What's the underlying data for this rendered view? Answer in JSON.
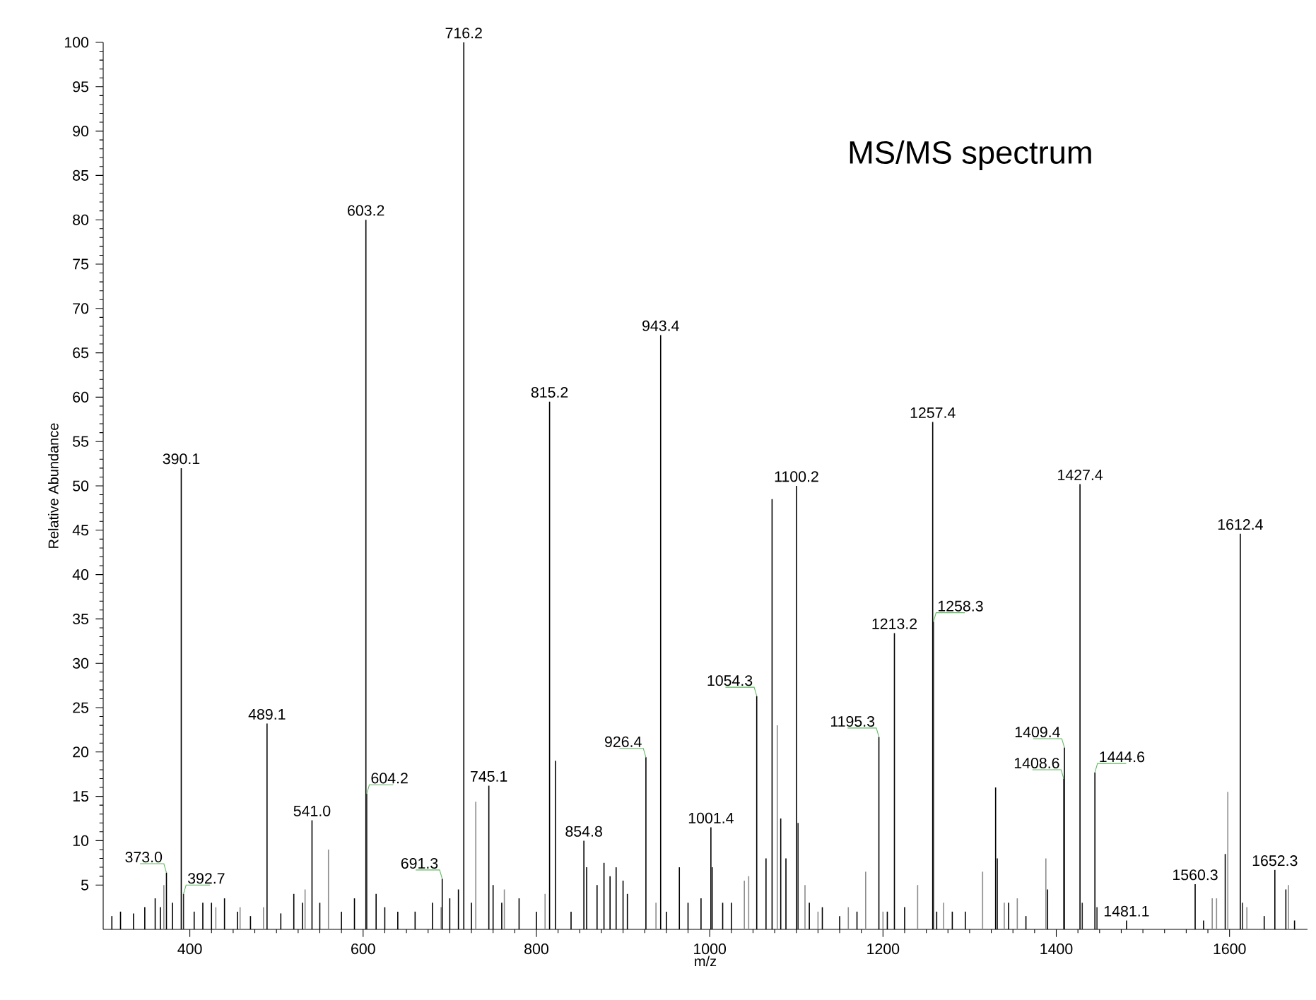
{
  "chart_data": {
    "type": "bar",
    "title": "MS/MS spectrum",
    "xlabel": "m/z",
    "ylabel": "Relative Abundance",
    "xlim": [
      300,
      1690
    ],
    "ylim": [
      0,
      100
    ],
    "xticks": [
      400,
      600,
      800,
      1000,
      1200,
      1400,
      1600
    ],
    "yticks": [
      5,
      10,
      15,
      20,
      25,
      30,
      35,
      40,
      45,
      50,
      55,
      60,
      65,
      70,
      75,
      80,
      85,
      90,
      95,
      100
    ],
    "series": [
      {
        "color": "#8c8c8c",
        "x": [
          370,
          430,
          458,
          485,
          533,
          560,
          690,
          730,
          763,
          810,
          938,
          1040,
          1045,
          1078,
          1110,
          1125,
          1160,
          1180,
          1200,
          1240,
          1270,
          1315,
          1340,
          1355,
          1388,
          1580,
          1585,
          1598,
          1620,
          1668
        ],
        "values": [
          5,
          2.5,
          2.5,
          2.5,
          4.5,
          9,
          2.5,
          14.4,
          4.5,
          4,
          3,
          5.5,
          6,
          23,
          5,
          2,
          2.5,
          6.5,
          2,
          5,
          3,
          6.5,
          3,
          3.5,
          8,
          3.5,
          3.5,
          15.5,
          2.5,
          5
        ]
      },
      {
        "color": "#000000",
        "x": [
          310,
          320,
          335,
          348,
          360,
          366,
          373.0,
          380,
          390.1,
          405,
          415,
          425,
          440,
          455,
          470,
          489.1,
          505,
          520,
          530,
          541.0,
          550,
          575,
          590,
          603.2,
          615,
          625,
          640,
          660,
          680,
          691.3,
          700,
          710,
          716.2,
          725,
          745.1,
          750,
          760,
          780,
          800,
          815.2,
          822,
          840,
          854.8,
          858,
          870,
          878,
          885,
          892,
          900,
          905,
          926.4,
          943.4,
          950,
          965,
          975,
          990,
          1001.4,
          1015,
          1025,
          1054.3,
          1065,
          1072,
          1082,
          1088,
          1100.2,
          1115,
          1130,
          1150,
          1170,
          1195.3,
          1205,
          1213.2,
          1225,
          1257.4,
          1262,
          1280,
          1295,
          1330,
          1345,
          1365,
          1390,
          1409.4,
          1427.4,
          1444.6,
          1481.1,
          1560.3,
          1570,
          1595,
          1612.4,
          1640,
          1652.3,
          1665,
          1675
        ],
        "values": [
          1.5,
          2,
          1.8,
          2.5,
          3.5,
          2.5,
          6.4,
          3,
          52,
          2,
          3,
          3,
          3.5,
          2,
          1.5,
          23.2,
          1.8,
          4,
          3,
          12.3,
          3,
          2,
          3.5,
          80,
          4,
          2.5,
          2,
          2,
          3,
          5.7,
          3.5,
          4.5,
          100,
          3,
          16.2,
          5,
          3,
          3.5,
          2,
          59.5,
          19,
          2,
          10,
          7,
          5,
          7.5,
          6,
          7,
          5.5,
          4,
          19.4,
          67,
          2,
          7,
          3,
          3.5,
          11.5,
          3,
          3,
          26.3,
          8,
          48.5,
          12.5,
          8,
          50,
          3,
          2.5,
          1.5,
          2,
          21.7,
          2,
          33.4,
          2.5,
          57.2,
          2,
          2,
          2,
          16,
          3,
          1.5,
          4.5,
          20.5,
          50.2,
          17.7,
          1,
          5.1,
          1,
          8.5,
          44.6,
          1.5,
          6.7,
          4.5,
          1
        ]
      },
      {
        "color": "#262626",
        "x": [
          392.7,
          604.2,
          1003,
          1102,
          1258.3,
          1332,
          1408.6,
          1430,
          1447,
          1615
        ],
        "values": [
          4,
          15.3,
          7,
          12,
          34.7,
          8,
          17,
          3,
          2.5,
          3
        ]
      }
    ],
    "annotations": [
      {
        "text": "373.0",
        "x": 373.0,
        "y": 6.4
      },
      {
        "text": "390.1",
        "x": 390.1,
        "y": 52
      },
      {
        "text": "392.7",
        "x": 392.7,
        "y": 4
      },
      {
        "text": "489.1",
        "x": 489.1,
        "y": 23.2
      },
      {
        "text": "541.0",
        "x": 541.0,
        "y": 12.3
      },
      {
        "text": "603.2",
        "x": 603.2,
        "y": 80
      },
      {
        "text": "604.2",
        "x": 604.2,
        "y": 15.3
      },
      {
        "text": "691.3",
        "x": 691.3,
        "y": 5.7
      },
      {
        "text": "716.2",
        "x": 716.2,
        "y": 100
      },
      {
        "text": "745.1",
        "x": 745.1,
        "y": 16.2
      },
      {
        "text": "815.2",
        "x": 815.2,
        "y": 59.5
      },
      {
        "text": "854.8",
        "x": 854.8,
        "y": 10
      },
      {
        "text": "926.4",
        "x": 926.4,
        "y": 19.4
      },
      {
        "text": "943.4",
        "x": 943.4,
        "y": 67
      },
      {
        "text": "1001.4",
        "x": 1001.4,
        "y": 11.5
      },
      {
        "text": "1054.3",
        "x": 1054.3,
        "y": 26.3
      },
      {
        "text": "1100.2",
        "x": 1100.2,
        "y": 50
      },
      {
        "text": "1195.3",
        "x": 1195.3,
        "y": 21.7
      },
      {
        "text": "1213.2",
        "x": 1213.2,
        "y": 33.4
      },
      {
        "text": "1257.4",
        "x": 1257.4,
        "y": 57.2
      },
      {
        "text": "1258.3",
        "x": 1258.3,
        "y": 34.7
      },
      {
        "text": "1408.6",
        "x": 1408.6,
        "y": 17
      },
      {
        "text": "1409.4",
        "x": 1409.4,
        "y": 20.5
      },
      {
        "text": "1427.4",
        "x": 1427.4,
        "y": 50.2
      },
      {
        "text": "1444.6",
        "x": 1444.6,
        "y": 17.7
      },
      {
        "text": "1481.1",
        "x": 1481.1,
        "y": 1
      },
      {
        "text": "1560.3",
        "x": 1560.3,
        "y": 5.1
      },
      {
        "text": "1612.4",
        "x": 1612.4,
        "y": 44.6
      },
      {
        "text": "1652.3",
        "x": 1652.3,
        "y": 6.7
      }
    ]
  }
}
